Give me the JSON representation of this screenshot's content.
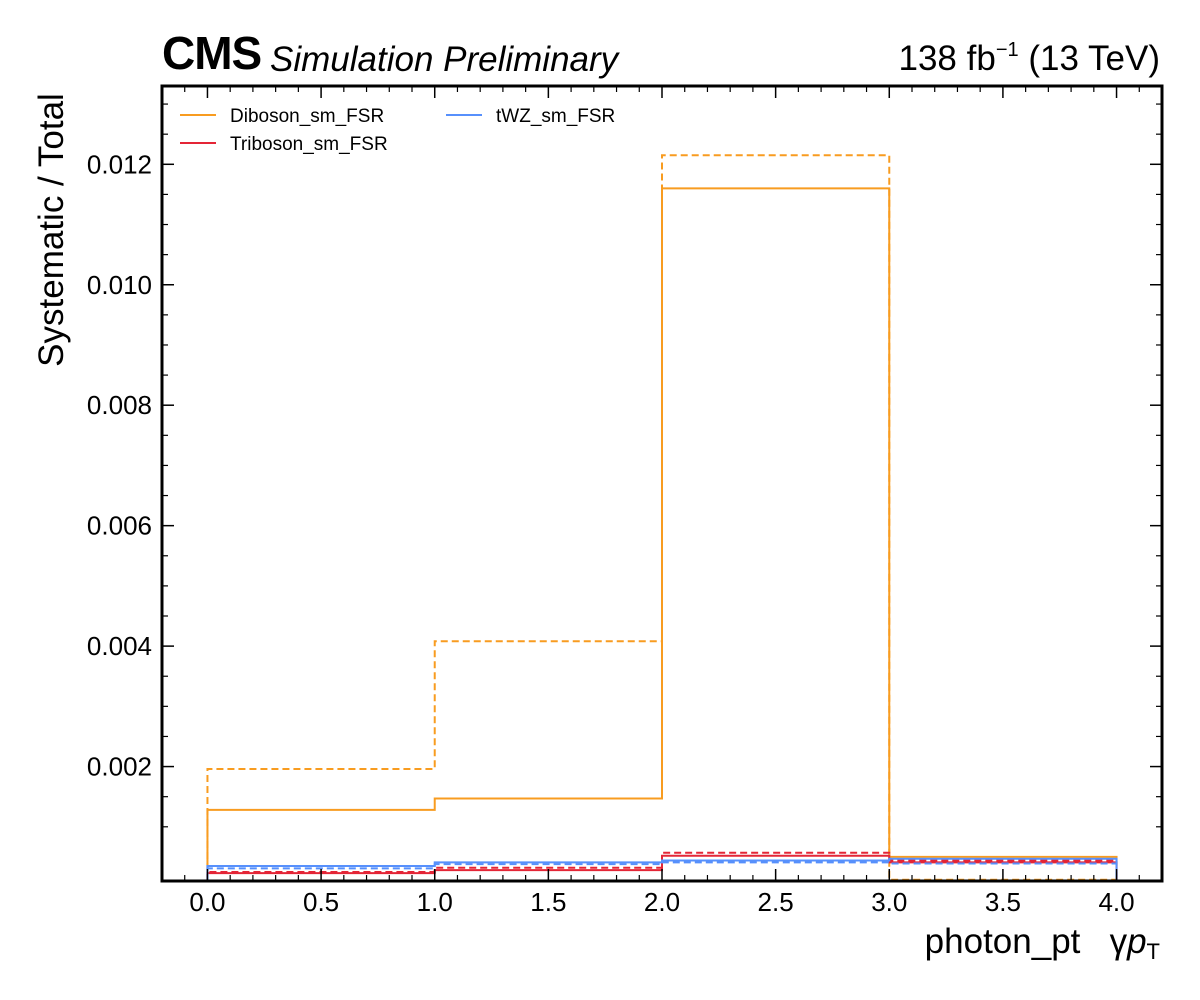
{
  "header": {
    "cms": "CMS",
    "subtitle": "Simulation Preliminary",
    "lumi_value": "138 fb",
    "lumi_exp": "−1",
    "lumi_energy": " (13 TeV)"
  },
  "chart_data": {
    "type": "step",
    "xlabel_main": "photon_pt",
    "xlabel_sym": "γ",
    "xlabel_p": "p",
    "xlabel_sub": "T",
    "ylabel": "Systematic / Total",
    "xlim": [
      -0.2,
      4.2
    ],
    "ylim": [
      0.0001,
      0.0133
    ],
    "xticks": [
      "0.0",
      "0.5",
      "1.0",
      "1.5",
      "2.0",
      "2.5",
      "3.0",
      "3.5",
      "4.0"
    ],
    "yticks": [
      "0.002",
      "0.004",
      "0.006",
      "0.008",
      "0.010",
      "0.012"
    ],
    "bin_edges": [
      0,
      1,
      2,
      3,
      4
    ],
    "legend_location": "top-left",
    "legend_columns": 2,
    "series": [
      {
        "name": "Diboson_sm_FSR",
        "color": "#f89c20",
        "up": [
          0.00128,
          0.00147,
          0.0116,
          0.0005
        ],
        "down": [
          0.00196,
          0.00408,
          0.01215,
          0.00012
        ]
      },
      {
        "name": "Triboson_sm_FSR",
        "color": "#e42536",
        "up": [
          0.00023,
          0.00028,
          0.00052,
          0.00041
        ],
        "down": [
          0.00025,
          0.00032,
          0.00057,
          0.00044
        ]
      },
      {
        "name": "tWZ_sm_FSR",
        "color": "#5790fc",
        "up": [
          0.00035,
          0.00041,
          0.00044,
          0.00047
        ],
        "down": [
          0.00031,
          0.00038,
          0.00041,
          0.00039
        ]
      }
    ]
  }
}
